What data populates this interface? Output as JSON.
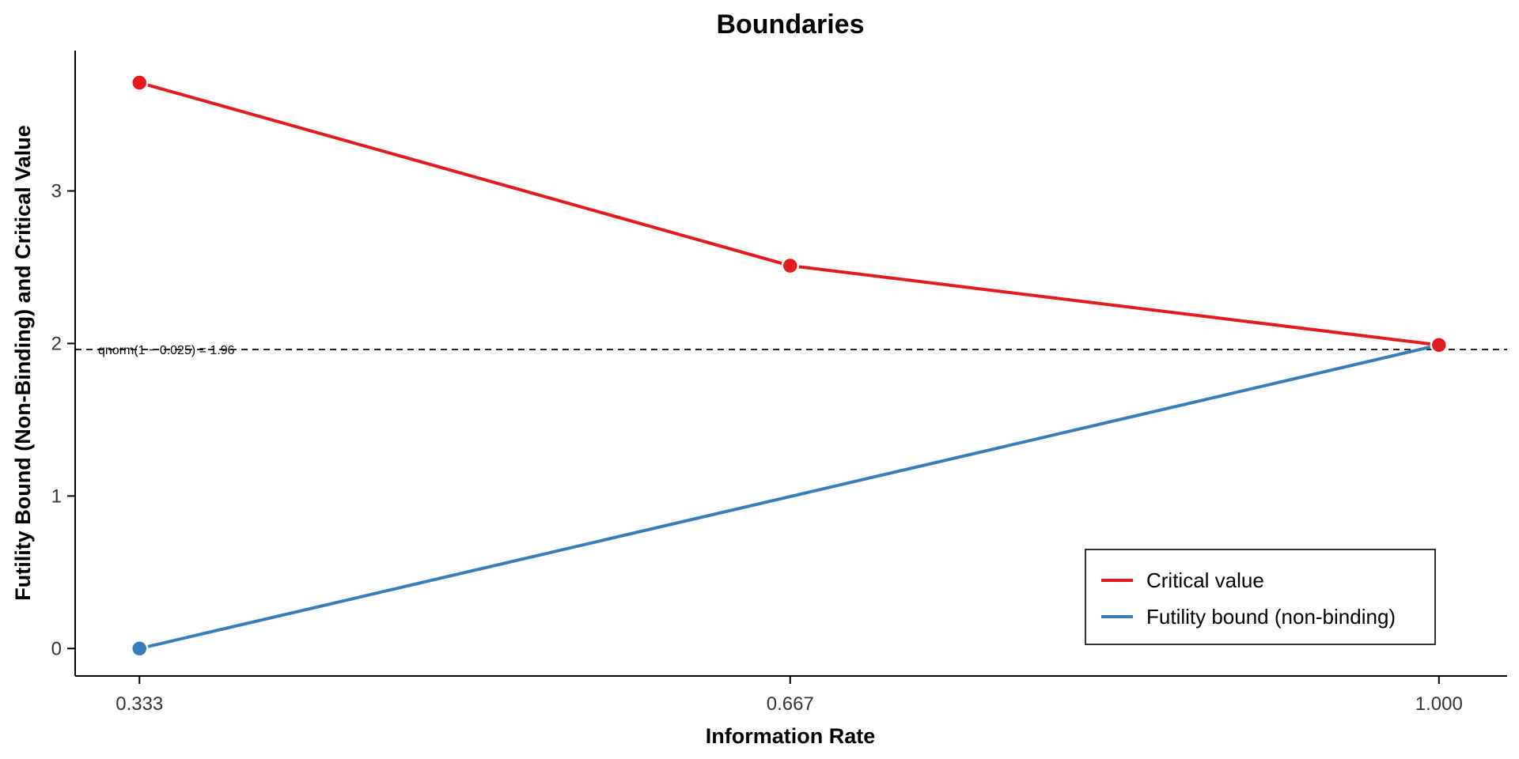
{
  "chart_data": {
    "type": "line",
    "title": "Boundaries",
    "xlabel": "Information Rate",
    "ylabel": "Futility Bound (Non-Binding) and Critical Value",
    "x": [
      0.333,
      0.667,
      1.0
    ],
    "x_tick_labels": [
      "0.333",
      "0.667",
      "1.000"
    ],
    "y_ticks": [
      0,
      1,
      2,
      3
    ],
    "y_tick_labels": [
      "0",
      "1",
      "2",
      "3"
    ],
    "xlim": [
      0.3,
      1.035
    ],
    "ylim": [
      -0.18,
      3.92
    ],
    "grid": false,
    "legend_position": "bottom-right",
    "series": [
      {
        "name": "Critical value",
        "color": "#e41a1c",
        "x": [
          0.333,
          0.667,
          1.0
        ],
        "values": [
          3.71,
          2.51,
          1.99
        ]
      },
      {
        "name": "Futility bound (non-binding)",
        "color": "#377eb8",
        "x": [
          0.333,
          1.0
        ],
        "values": [
          0.0,
          1.99
        ],
        "markers_at": [
          0.333
        ]
      }
    ],
    "reference_line": {
      "y": 1.96,
      "style": "dashed",
      "color": "#000000",
      "label": "qnorm(1 − 0.025) = 1.96"
    }
  }
}
